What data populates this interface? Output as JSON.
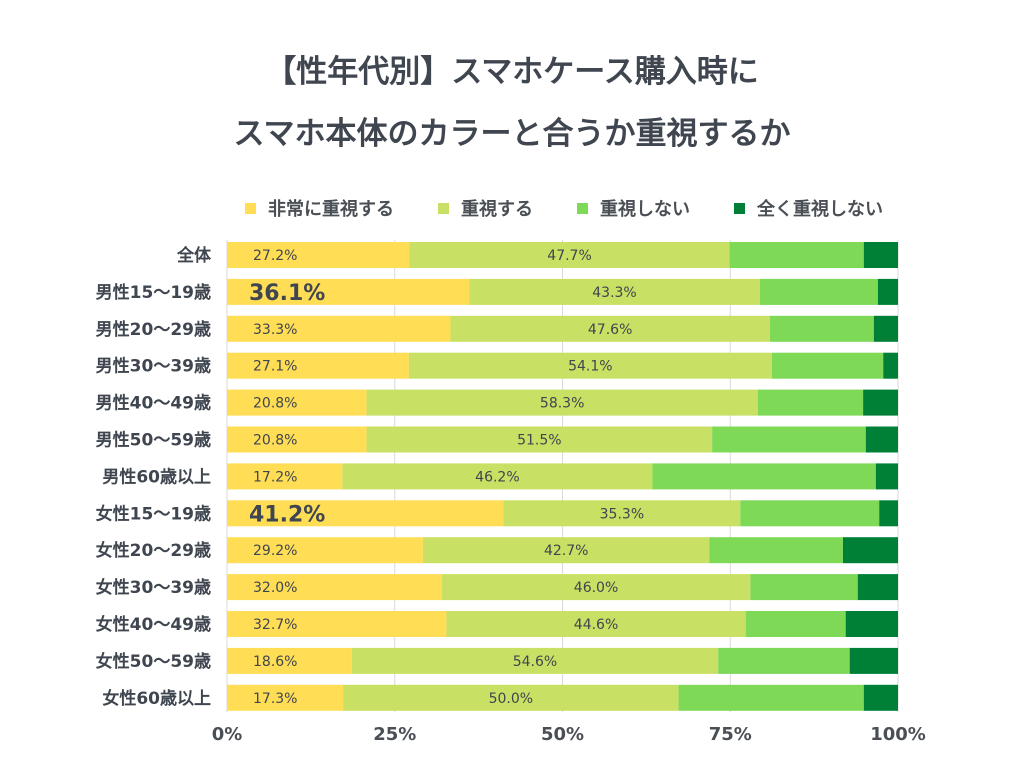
{
  "chart_data": {
    "type": "bar",
    "orientation": "horizontal",
    "stacked": true,
    "title": [
      "【性年代別】スマホケース購入時に",
      "スマホ本体のカラーと合うか重視するか"
    ],
    "legend_position": "top",
    "grid": true,
    "xlim": [
      0,
      100
    ],
    "x_ticks": [
      "0%",
      "25%",
      "50%",
      "75%",
      "100%"
    ],
    "categories": [
      "全体",
      "男性15〜19歳",
      "男性20〜29歳",
      "男性30〜39歳",
      "男性40〜49歳",
      "男性50〜59歳",
      "男性60歳以上",
      "女性15〜19歳",
      "女性20〜29歳",
      "女性30〜39歳",
      "女性40〜49歳",
      "女性50〜59歳",
      "女性60歳以上"
    ],
    "series": [
      {
        "name": "非常に重視する",
        "color": "#FFDD55",
        "values": [
          27.2,
          36.1,
          33.3,
          27.1,
          20.8,
          20.8,
          17.2,
          41.2,
          29.2,
          32.0,
          32.7,
          18.6,
          17.3
        ],
        "labels": [
          "27.2%",
          "36.1%",
          "33.3%",
          "27.1%",
          "20.8%",
          "20.8%",
          "17.2%",
          "41.2%",
          "29.2%",
          "32.0%",
          "32.7%",
          "18.6%",
          "17.3%"
        ]
      },
      {
        "name": "重視する",
        "color": "#C8E063",
        "values": [
          47.7,
          43.3,
          47.6,
          54.1,
          58.3,
          51.5,
          46.2,
          35.3,
          42.7,
          46.0,
          44.6,
          54.6,
          50.0
        ],
        "labels": [
          "47.7%",
          "43.3%",
          "47.6%",
          "54.1%",
          "58.3%",
          "51.5%",
          "46.2%",
          "35.3%",
          "42.7%",
          "46.0%",
          "44.6%",
          "54.6%",
          "50.0%"
        ]
      },
      {
        "name": "重視しない",
        "color": "#7ED957",
        "values": [
          20.0,
          17.6,
          15.5,
          16.6,
          15.7,
          22.9,
          33.3,
          20.7,
          19.9,
          16.0,
          14.9,
          19.6,
          27.6
        ]
      },
      {
        "name": "全く重視しない",
        "color": "#008037",
        "values": [
          5.1,
          3.0,
          3.6,
          2.2,
          5.2,
          4.8,
          3.3,
          2.8,
          8.2,
          6.0,
          7.8,
          7.2,
          5.1
        ]
      }
    ],
    "highlighted_labels": [
      "36.1%",
      "41.2%"
    ]
  }
}
